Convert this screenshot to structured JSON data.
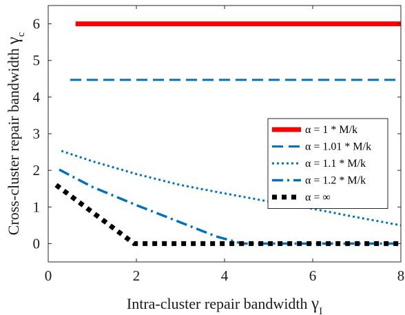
{
  "chart_data": {
    "type": "line",
    "title": "",
    "xlabel": "Intra-cluster repair bandwidth ",
    "xlabel_symbol": "γ",
    "xlabel_sub": "I",
    "ylabel": "Cross-cluster repair bandwidth ",
    "ylabel_symbol": "γ",
    "ylabel_sub": "c",
    "xlim": [
      0,
      8
    ],
    "ylim": [
      -0.5,
      6.5
    ],
    "xticks": [
      0,
      2,
      4,
      6,
      8
    ],
    "yticks": [
      0,
      1,
      2,
      3,
      4,
      5,
      6
    ],
    "grid": false,
    "legend_position": "center-right",
    "series": [
      {
        "name": "α = 1 * M/k",
        "color": "#ff0000",
        "style": "solid",
        "x": [
          0.62,
          8
        ],
        "y": [
          6.0,
          6.0
        ]
      },
      {
        "name": "α = 1.01 * M/k",
        "color": "#0072bd",
        "style": "dashed",
        "x": [
          0.5,
          8
        ],
        "y": [
          4.47,
          4.47
        ]
      },
      {
        "name": "α = 1.1 * M/k",
        "color": "#0072bd",
        "style": "dotted",
        "x": [
          0.3,
          1.0,
          2.0,
          3.0,
          4.0,
          5.0,
          6.0,
          7.0,
          8.0
        ],
        "y": [
          2.53,
          2.25,
          1.9,
          1.6,
          1.37,
          1.15,
          0.95,
          0.72,
          0.5
        ]
      },
      {
        "name": "α = 1.2 * M/k",
        "color": "#0072bd",
        "style": "dashdot",
        "x": [
          0.25,
          1.0,
          2.0,
          3.0,
          3.8,
          4.4,
          5.0,
          6.0,
          7.0,
          8.0
        ],
        "y": [
          2.02,
          1.55,
          1.05,
          0.58,
          0.2,
          0.0,
          0.0,
          0.0,
          0.0,
          0.0
        ]
      },
      {
        "name": "α = ∞",
        "color": "#000000",
        "style": "dotted-thick",
        "x": [
          0.18,
          1.95,
          2.0,
          8.0
        ],
        "y": [
          1.6,
          0.0,
          0.0,
          0.0
        ]
      }
    ]
  }
}
